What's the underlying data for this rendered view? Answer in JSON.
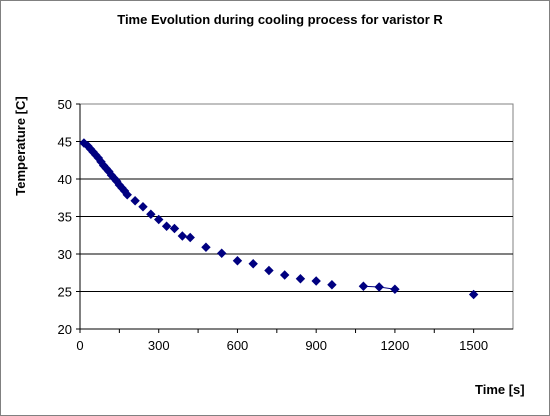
{
  "chart_data": {
    "type": "scatter",
    "title": "Time Evolution during cooling process for varistor R",
    "xlabel": "Time [s]",
    "ylabel": "Temperature [C]",
    "xlim": [
      0,
      1650
    ],
    "ylim": [
      20,
      50
    ],
    "xticks": [
      0,
      300,
      600,
      900,
      1200,
      1500
    ],
    "yticks": [
      20,
      25,
      30,
      35,
      40,
      45,
      50
    ],
    "grid": "horizontal",
    "legend": "none",
    "marker": "diamond",
    "color": "#000080",
    "series": [
      {
        "x": [
          15,
          30,
          40,
          50,
          60,
          70,
          80,
          90,
          100,
          110,
          120,
          130,
          140,
          150,
          160,
          170,
          180,
          210,
          240,
          270,
          300,
          330,
          360,
          390,
          420,
          480,
          540,
          600,
          660,
          720,
          780,
          840,
          900,
          960,
          1080,
          1140,
          1200,
          1500
        ],
        "y": [
          44.8,
          44.4,
          44.0,
          43.6,
          43.2,
          42.8,
          42.3,
          41.8,
          41.4,
          41.0,
          40.5,
          40.1,
          39.7,
          39.2,
          38.8,
          38.4,
          37.9,
          37.1,
          36.3,
          35.3,
          34.6,
          33.7,
          33.4,
          32.4,
          32.2,
          30.9,
          30.1,
          29.1,
          28.7,
          27.8,
          27.2,
          26.7,
          26.4,
          25.9,
          25.7,
          25.6,
          25.3,
          24.6
        ]
      }
    ]
  }
}
